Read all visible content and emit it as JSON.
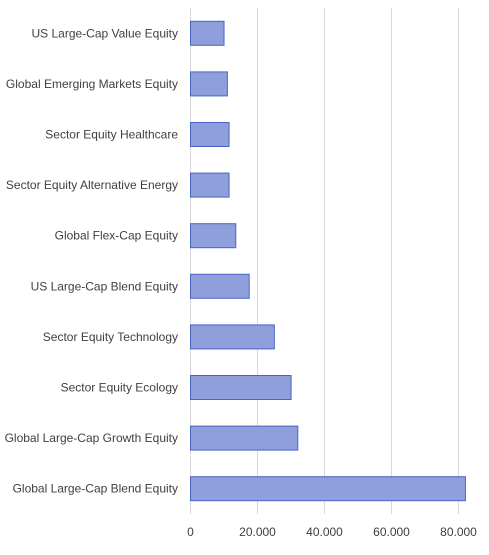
{
  "chart_data": {
    "type": "bar",
    "orientation": "horizontal",
    "title": "",
    "xlabel": "",
    "ylabel": "",
    "categories": [
      "US Large-Cap Value Equity",
      "Global Emerging Markets Equity",
      "Sector Equity Healthcare",
      "Sector Equity Alternative Energy",
      "Global Flex-Cap Equity",
      "US Large-Cap Blend Equity",
      "Sector Equity Technology",
      "Sector Equity Ecology",
      "Global Large-Cap Growth Equity",
      "Global Large-Cap Blend Equity"
    ],
    "values": [
      10000,
      11000,
      11500,
      11500,
      13500,
      17500,
      25000,
      30000,
      32000,
      82000
    ],
    "xlim": [
      0,
      85000
    ],
    "xticks": [
      0,
      20000,
      40000,
      60000,
      80000
    ],
    "xtick_labels": [
      "0",
      "20.000",
      "40.000",
      "60.000",
      "80.000"
    ],
    "grid": "vertical",
    "legend": "none",
    "colors": {
      "bar_fill": "#8e9fdb",
      "bar_stroke": "#4a64c4",
      "grid": "#d9d9d9",
      "text": "#404040"
    }
  }
}
